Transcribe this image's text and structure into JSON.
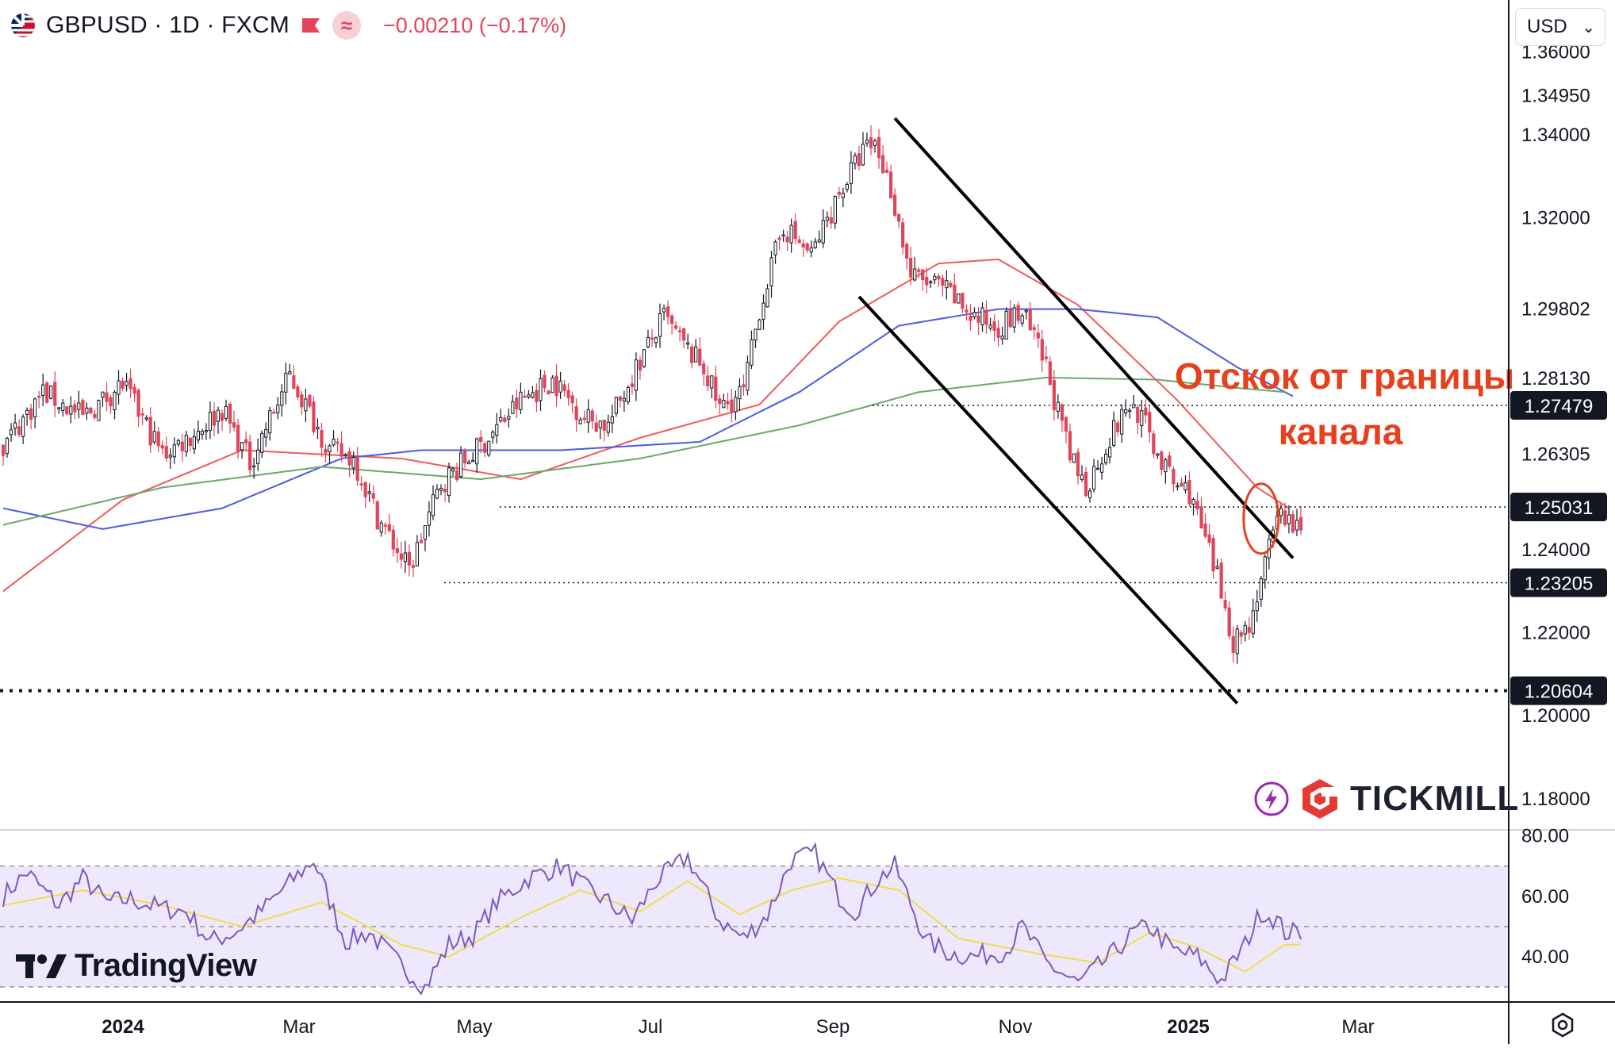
{
  "header": {
    "symbol": "GBPUSD · 1D · FXCM",
    "change": "−0.00210 (−0.17%)",
    "currency": "USD"
  },
  "colors": {
    "up": "#131722",
    "down": "#e0455a",
    "ma_red": "#f05a5a",
    "ma_blue": "#4b5be0",
    "ma_green": "#6aa86a",
    "rsi": "#7e57c2",
    "rsi_ma": "#f2dc4a",
    "annotation": "#e8401c"
  },
  "branding": {
    "tradingview": "TradingView",
    "tickmill": "TICKMILL"
  },
  "chart_data": {
    "type": "candlestick",
    "x_ticks": [
      "2024",
      "Mar",
      "May",
      "Jul",
      "Sep",
      "Nov",
      "2025",
      "Mar"
    ],
    "y_ticks": [
      "1.36000",
      "1.34950",
      "1.34000",
      "1.32000",
      "1.29802",
      "1.28130",
      "1.26305",
      "1.24000",
      "1.22000",
      "1.20000",
      "1.18000"
    ],
    "ylim": [
      1.1725,
      1.3725
    ],
    "price_labels": [
      {
        "value": "1.27479",
        "style": "dotted"
      },
      {
        "value": "1.25031",
        "style": "dotted"
      },
      {
        "value": "1.23205",
        "style": "dotted"
      },
      {
        "value": "1.20604",
        "style": "thick-dotted"
      }
    ],
    "anchors": [
      [
        0,
        1.265
      ],
      [
        10,
        1.278
      ],
      [
        20,
        1.272
      ],
      [
        30,
        1.28
      ],
      [
        40,
        1.263
      ],
      [
        48,
        1.268
      ],
      [
        55,
        1.274
      ],
      [
        62,
        1.261
      ],
      [
        72,
        1.282
      ],
      [
        82,
        1.264
      ],
      [
        88,
        1.262
      ],
      [
        94,
        1.248
      ],
      [
        102,
        1.235
      ],
      [
        110,
        1.256
      ],
      [
        120,
        1.265
      ],
      [
        130,
        1.276
      ],
      [
        138,
        1.281
      ],
      [
        146,
        1.272
      ],
      [
        152,
        1.27
      ],
      [
        158,
        1.282
      ],
      [
        166,
        1.296
      ],
      [
        172,
        1.288
      ],
      [
        176,
        1.284
      ],
      [
        180,
        1.274
      ],
      [
        186,
        1.278
      ],
      [
        190,
        1.298
      ],
      [
        196,
        1.318
      ],
      [
        203,
        1.311
      ],
      [
        210,
        1.326
      ],
      [
        216,
        1.336
      ],
      [
        219,
        1.338
      ],
      [
        223,
        1.327
      ],
      [
        228,
        1.306
      ],
      [
        236,
        1.303
      ],
      [
        244,
        1.296
      ],
      [
        250,
        1.294
      ],
      [
        256,
        1.297
      ],
      [
        262,
        1.284
      ],
      [
        268,
        1.262
      ],
      [
        272,
        1.255
      ],
      [
        278,
        1.267
      ],
      [
        283,
        1.275
      ],
      [
        286,
        1.272
      ],
      [
        290,
        1.263
      ],
      [
        294,
        1.256
      ],
      [
        298,
        1.254
      ],
      [
        302,
        1.242
      ],
      [
        306,
        1.23
      ],
      [
        309,
        1.218
      ],
      [
        313,
        1.222
      ],
      [
        316,
        1.233
      ],
      [
        319,
        1.243
      ],
      [
        321,
        1.249
      ],
      [
        326,
        1.244
      ]
    ],
    "candle_count": 327,
    "moving_averages": [
      {
        "color_key": "ma_red",
        "points": [
          [
            0,
            1.23
          ],
          [
            30,
            1.252
          ],
          [
            60,
            1.264
          ],
          [
            100,
            1.262
          ],
          [
            130,
            1.257
          ],
          [
            160,
            1.267
          ],
          [
            190,
            1.275
          ],
          [
            210,
            1.295
          ],
          [
            235,
            1.309
          ],
          [
            250,
            1.31
          ],
          [
            270,
            1.299
          ],
          [
            295,
            1.276
          ],
          [
            315,
            1.255
          ],
          [
            323,
            1.25
          ]
        ]
      },
      {
        "color_key": "ma_blue",
        "points": [
          [
            0,
            1.25
          ],
          [
            25,
            1.245
          ],
          [
            55,
            1.25
          ],
          [
            85,
            1.262
          ],
          [
            105,
            1.264
          ],
          [
            140,
            1.264
          ],
          [
            175,
            1.266
          ],
          [
            200,
            1.278
          ],
          [
            225,
            1.294
          ],
          [
            250,
            1.298
          ],
          [
            270,
            1.298
          ],
          [
            290,
            1.296
          ],
          [
            310,
            1.284
          ],
          [
            324,
            1.277
          ]
        ]
      },
      {
        "color_key": "ma_green",
        "points": [
          [
            0,
            1.246
          ],
          [
            40,
            1.255
          ],
          [
            80,
            1.26
          ],
          [
            120,
            1.257
          ],
          [
            160,
            1.262
          ],
          [
            200,
            1.27
          ],
          [
            230,
            1.278
          ],
          [
            262,
            1.2815
          ],
          [
            290,
            1.281
          ],
          [
            310,
            1.279
          ],
          [
            322,
            1.278
          ]
        ]
      }
    ],
    "channel_lines": [
      {
        "from": [
          224,
          1.344
        ],
        "to": [
          324,
          1.238
        ]
      },
      {
        "from": [
          215,
          1.301
        ],
        "to": [
          310,
          1.203
        ]
      }
    ],
    "annotation": {
      "text_line1": "Отскок от границы",
      "text_line2": "канала",
      "circle_at": [
        316,
        1.2475
      ]
    },
    "rsi": {
      "y_ticks": [
        "80.00",
        "60.00",
        "40.00"
      ],
      "ylim": [
        25,
        82
      ],
      "bands": [
        70,
        50,
        30
      ],
      "anchors": [
        [
          0,
          60
        ],
        [
          6,
          68
        ],
        [
          10,
          62
        ],
        [
          14,
          57
        ],
        [
          20,
          66
        ],
        [
          26,
          58
        ],
        [
          32,
          59
        ],
        [
          40,
          56
        ],
        [
          46,
          55
        ],
        [
          52,
          45
        ],
        [
          58,
          48
        ],
        [
          64,
          54
        ],
        [
          70,
          62
        ],
        [
          78,
          72
        ],
        [
          86,
          45
        ],
        [
          92,
          48
        ],
        [
          100,
          37
        ],
        [
          106,
          30
        ],
        [
          112,
          44
        ],
        [
          118,
          47
        ],
        [
          124,
          58
        ],
        [
          132,
          66
        ],
        [
          140,
          70
        ],
        [
          146,
          63
        ],
        [
          152,
          58
        ],
        [
          158,
          52
        ],
        [
          164,
          65
        ],
        [
          172,
          73
        ],
        [
          180,
          52
        ],
        [
          186,
          46
        ],
        [
          192,
          54
        ],
        [
          198,
          72
        ],
        [
          204,
          74
        ],
        [
          210,
          60
        ],
        [
          214,
          55
        ],
        [
          220,
          66
        ],
        [
          224,
          70
        ],
        [
          232,
          45
        ],
        [
          238,
          41
        ],
        [
          244,
          40
        ],
        [
          252,
          42
        ],
        [
          256,
          50
        ],
        [
          262,
          38
        ],
        [
          270,
          31
        ],
        [
          278,
          40
        ],
        [
          284,
          48
        ],
        [
          288,
          50
        ],
        [
          294,
          42
        ],
        [
          300,
          40
        ],
        [
          306,
          32
        ],
        [
          312,
          44
        ],
        [
          316,
          55
        ],
        [
          320,
          52
        ],
        [
          322,
          48
        ]
      ],
      "ma_anchors": [
        [
          0,
          57
        ],
        [
          20,
          62
        ],
        [
          40,
          57
        ],
        [
          60,
          50
        ],
        [
          80,
          58
        ],
        [
          100,
          44
        ],
        [
          112,
          40
        ],
        [
          130,
          53
        ],
        [
          145,
          62
        ],
        [
          160,
          55
        ],
        [
          172,
          65
        ],
        [
          185,
          54
        ],
        [
          198,
          62
        ],
        [
          210,
          66
        ],
        [
          225,
          62
        ],
        [
          240,
          46
        ],
        [
          260,
          41
        ],
        [
          275,
          38
        ],
        [
          288,
          48
        ],
        [
          300,
          43
        ],
        [
          312,
          35
        ],
        [
          322,
          44
        ]
      ]
    }
  }
}
